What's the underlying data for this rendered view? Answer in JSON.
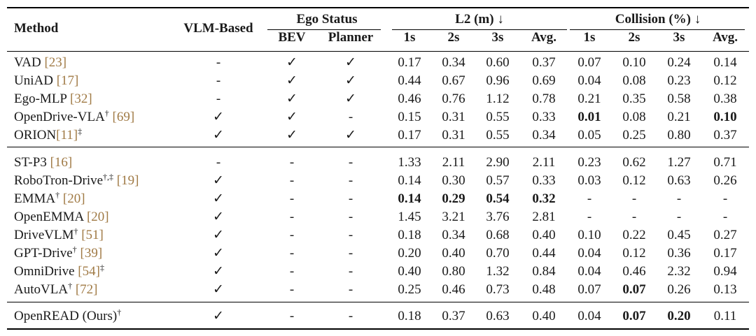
{
  "header": {
    "method": "Method",
    "vlm_based": "VLM-Based",
    "ego_status": "Ego Status",
    "bev": "BEV",
    "planner": "Planner",
    "l2_group": "L2 (m) ↓",
    "collision_group": "Collision (%) ↓",
    "sub": [
      "1s",
      "2s",
      "3s",
      "Avg.",
      "1s",
      "2s",
      "3s",
      "Avg."
    ]
  },
  "rows": [
    {
      "name": "VAD ",
      "cite": "[23]",
      "sup": "",
      "sup_after": "",
      "vlm": "-",
      "bev": "✓",
      "planner": "✓",
      "vals": [
        "0.17",
        "0.34",
        "0.60",
        "0.37",
        "0.07",
        "0.10",
        "0.24",
        "0.14"
      ],
      "bold": []
    },
    {
      "name": "UniAD ",
      "cite": "[17]",
      "sup": "",
      "sup_after": "",
      "vlm": "-",
      "bev": "✓",
      "planner": "✓",
      "vals": [
        "0.44",
        "0.67",
        "0.96",
        "0.69",
        "0.04",
        "0.08",
        "0.23",
        "0.12"
      ],
      "bold": []
    },
    {
      "name": "Ego-MLP ",
      "cite": "[32]",
      "sup": "",
      "sup_after": "",
      "vlm": "-",
      "bev": "✓",
      "planner": "✓",
      "vals": [
        "0.46",
        "0.76",
        "1.12",
        "0.78",
        "0.21",
        "0.35",
        "0.58",
        "0.38"
      ],
      "bold": []
    },
    {
      "name": "OpenDrive-VLA",
      "cite": "[69]",
      "sup": "†",
      "sup_after": "",
      "vlm": "✓",
      "bev": "✓",
      "planner": "-",
      "vals": [
        "0.15",
        "0.31",
        "0.55",
        "0.33",
        "0.01",
        "0.08",
        "0.21",
        "0.10"
      ],
      "bold": [
        4,
        7
      ]
    },
    {
      "name": "ORION",
      "cite": "[11]",
      "sup": "",
      "sup_after": "‡",
      "vlm": "✓",
      "bev": "✓",
      "planner": "✓",
      "vals": [
        "0.17",
        "0.31",
        "0.55",
        "0.34",
        "0.05",
        "0.25",
        "0.80",
        "0.37"
      ],
      "bold": []
    },
    {
      "name": "ST-P3 ",
      "cite": "[16]",
      "sup": "",
      "sup_after": "",
      "vlm": "-",
      "bev": "-",
      "planner": "-",
      "vals": [
        "1.33",
        "2.11",
        "2.90",
        "2.11",
        "0.23",
        "0.62",
        "1.27",
        "0.71"
      ],
      "bold": []
    },
    {
      "name": "RoboTron-Drive",
      "cite": "[19]",
      "sup": "†,‡",
      "sup_after": "",
      "vlm": "✓",
      "bev": "-",
      "planner": "-",
      "vals": [
        "0.14",
        "0.30",
        "0.57",
        "0.33",
        "0.03",
        "0.12",
        "0.63",
        "0.26"
      ],
      "bold": []
    },
    {
      "name": "EMMA",
      "cite": "[20]",
      "sup": "†",
      "sup_after": "",
      "vlm": "✓",
      "bev": "-",
      "planner": "-",
      "vals": [
        "0.14",
        "0.29",
        "0.54",
        "0.32",
        "-",
        "-",
        "-",
        "-"
      ],
      "bold": [
        0,
        1,
        2,
        3
      ]
    },
    {
      "name": "OpenEMMA ",
      "cite": "[20]",
      "sup": "",
      "sup_after": "",
      "vlm": "✓",
      "bev": "-",
      "planner": "-",
      "vals": [
        "1.45",
        "3.21",
        "3.76",
        "2.81",
        "-",
        "-",
        "-",
        "-"
      ],
      "bold": []
    },
    {
      "name": "DriveVLM",
      "cite": "[51]",
      "sup": "†",
      "sup_after": "",
      "vlm": "✓",
      "bev": "-",
      "planner": "-",
      "vals": [
        "0.18",
        "0.34",
        "0.68",
        "0.40",
        "0.10",
        "0.22",
        "0.45",
        "0.27"
      ],
      "bold": []
    },
    {
      "name": "GPT-Drive",
      "cite": "[39]",
      "sup": "†",
      "sup_after": "",
      "vlm": "✓",
      "bev": "-",
      "planner": "-",
      "vals": [
        "0.20",
        "0.40",
        "0.70",
        "0.44",
        "0.04",
        "0.12",
        "0.36",
        "0.17"
      ],
      "bold": []
    },
    {
      "name": "OmniDrive ",
      "cite": "[54]",
      "sup": "",
      "sup_after": "‡",
      "vlm": "✓",
      "bev": "-",
      "planner": "-",
      "vals": [
        "0.40",
        "0.80",
        "1.32",
        "0.84",
        "0.04",
        "0.46",
        "2.32",
        "0.94"
      ],
      "bold": []
    },
    {
      "name": "AutoVLA",
      "cite": "[72]",
      "sup": "†",
      "sup_after": "",
      "vlm": "✓",
      "bev": "-",
      "planner": "-",
      "vals": [
        "0.25",
        "0.46",
        "0.73",
        "0.48",
        "0.07",
        "0.07",
        "0.26",
        "0.13"
      ],
      "bold": [
        5
      ]
    },
    {
      "name": "OpenREAD (Ours)",
      "cite": "",
      "sup": "†",
      "sup_after": "",
      "vlm": "✓",
      "bev": "-",
      "planner": "-",
      "vals": [
        "0.18",
        "0.37",
        "0.63",
        "0.40",
        "0.04",
        "0.07",
        "0.20",
        "0.11"
      ],
      "bold": [
        5,
        6
      ]
    }
  ]
}
